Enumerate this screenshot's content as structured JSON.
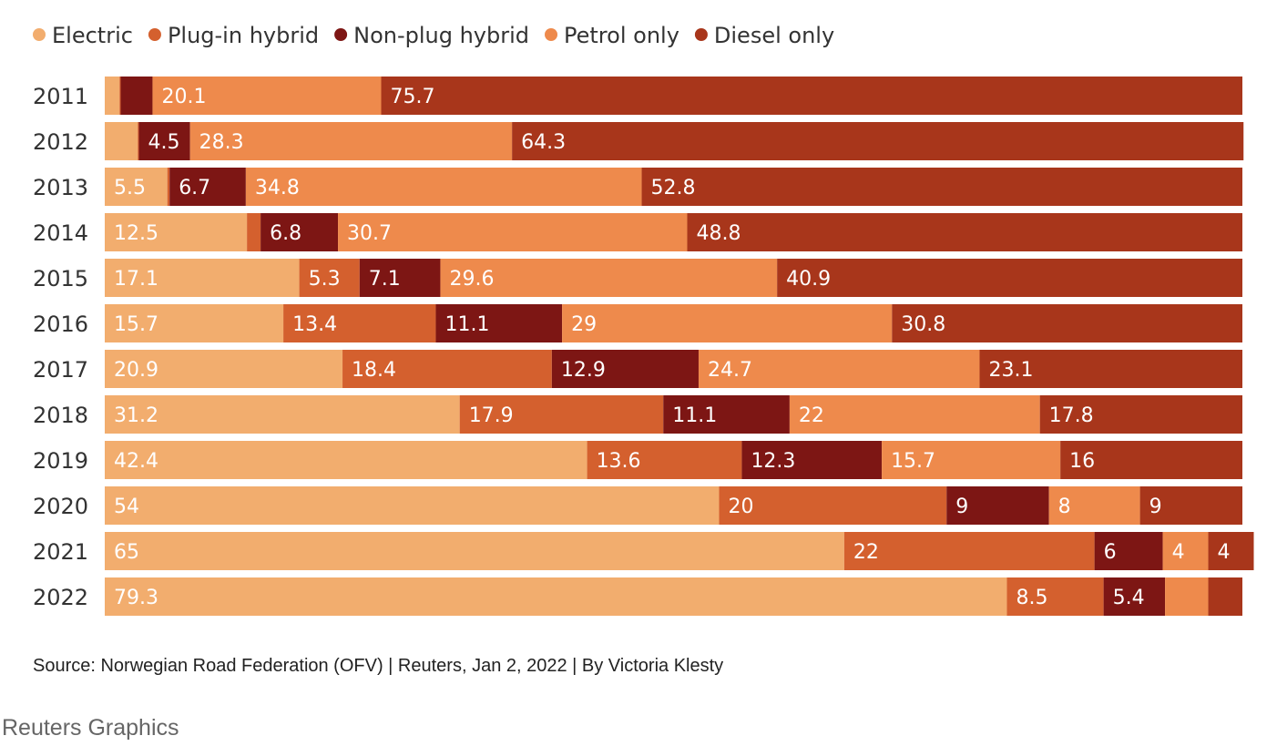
{
  "chart_data": {
    "type": "bar",
    "orientation": "horizontal",
    "stacked": true,
    "legend_position": "top-left",
    "grid": false,
    "xlim": [
      0,
      100
    ],
    "categories": [
      "2011",
      "2012",
      "2013",
      "2014",
      "2015",
      "2016",
      "2017",
      "2018",
      "2019",
      "2020",
      "2021",
      "2022"
    ],
    "series": [
      {
        "name": "Electric",
        "color": "#f2ad6e",
        "values": [
          1.3,
          2.9,
          5.5,
          12.5,
          17.1,
          15.7,
          20.9,
          31.2,
          42.4,
          54,
          65,
          79.3
        ],
        "labels": [
          "",
          "",
          "5.5",
          "12.5",
          "17.1",
          "15.7",
          "20.9",
          "31.2",
          "42.4",
          "54",
          "65",
          "79.3"
        ]
      },
      {
        "name": "Plug-in hybrid",
        "color": "#d4602e",
        "values": [
          0.1,
          0.1,
          0.2,
          1.2,
          5.3,
          13.4,
          18.4,
          17.9,
          13.6,
          20,
          22,
          8.5
        ],
        "labels": [
          "",
          "",
          "",
          "",
          "5.3",
          "13.4",
          "18.4",
          "17.9",
          "13.6",
          "20",
          "22",
          "8.5"
        ]
      },
      {
        "name": "Non-plug hybrid",
        "color": "#7d1614",
        "values": [
          2.8,
          4.5,
          6.7,
          6.8,
          7.1,
          11.1,
          12.9,
          11.1,
          12.3,
          9,
          6,
          5.4
        ],
        "labels": [
          "",
          "4.5",
          "6.7",
          "6.8",
          "7.1",
          "11.1",
          "12.9",
          "11.1",
          "12.3",
          "9",
          "6",
          "5.4"
        ]
      },
      {
        "name": "Petrol only",
        "color": "#ee8a4c",
        "values": [
          20.1,
          28.3,
          34.8,
          30.7,
          29.6,
          29,
          24.7,
          22,
          15.7,
          8,
          4,
          3.8
        ],
        "labels": [
          "20.1",
          "28.3",
          "34.8",
          "30.7",
          "29.6",
          "29",
          "24.7",
          "22",
          "15.7",
          "8",
          "4",
          ""
        ]
      },
      {
        "name": "Diesel only",
        "color": "#a8361b",
        "values": [
          75.7,
          64.3,
          52.8,
          48.8,
          40.9,
          30.8,
          23.1,
          17.8,
          16,
          9,
          4,
          3
        ],
        "labels": [
          "75.7",
          "64.3",
          "52.8",
          "48.8",
          "40.9",
          "30.8",
          "23.1",
          "17.8",
          "16",
          "9",
          "4",
          ""
        ]
      }
    ]
  },
  "footer": {
    "source": "Source: Norwegian Road Federation (OFV) | Reuters, Jan 2, 2022 | By Victoria Klesty",
    "brand": "Reuters Graphics"
  }
}
